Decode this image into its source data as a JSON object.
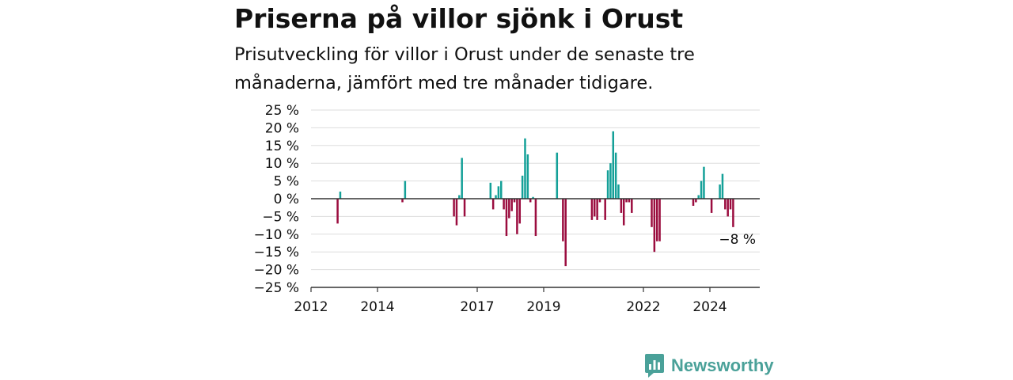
{
  "title": "Priserna på villor sjönk i Orust",
  "subtitle": "Prisutveckling för villor i Orust under de senaste tre månaderna, jämfört med tre månader tidigare.",
  "brand": {
    "name": "Newsworthy",
    "icon": "newsworthy-logo-icon",
    "color": "#4aa199"
  },
  "chart_data": {
    "type": "bar",
    "title": "Priserna på villor sjönk i Orust",
    "xlabel": "",
    "ylabel": "",
    "ylim": [
      -25,
      25
    ],
    "y_ticks": [
      25,
      20,
      15,
      10,
      5,
      0,
      -5,
      -10,
      -15,
      -20,
      -25
    ],
    "y_tick_suffix": " %",
    "x_ticks": [
      2012,
      2014,
      2017,
      2019,
      2022,
      2024
    ],
    "xlim": [
      2012.0,
      2025.5
    ],
    "grid": "horizontal",
    "colors": {
      "positive": "#14a098",
      "negative": "#9b0d3f",
      "zero_line": "#333333"
    },
    "annotation": {
      "text": "−8 %",
      "x": 2025.0,
      "y": -8
    },
    "points": [
      {
        "x": 2012.8,
        "y": -7
      },
      {
        "x": 2012.88,
        "y": 2
      },
      {
        "x": 2014.75,
        "y": -1
      },
      {
        "x": 2014.83,
        "y": 5
      },
      {
        "x": 2016.3,
        "y": -5
      },
      {
        "x": 2016.38,
        "y": -7.5
      },
      {
        "x": 2016.46,
        "y": 1
      },
      {
        "x": 2016.54,
        "y": 11.5
      },
      {
        "x": 2016.62,
        "y": -5
      },
      {
        "x": 2017.4,
        "y": 4.5
      },
      {
        "x": 2017.48,
        "y": -3
      },
      {
        "x": 2017.56,
        "y": 1
      },
      {
        "x": 2017.64,
        "y": 3.5
      },
      {
        "x": 2017.72,
        "y": 5
      },
      {
        "x": 2017.8,
        "y": -3
      },
      {
        "x": 2017.88,
        "y": -10.5
      },
      {
        "x": 2017.96,
        "y": -5.5
      },
      {
        "x": 2018.04,
        "y": -3.5
      },
      {
        "x": 2018.12,
        "y": -1
      },
      {
        "x": 2018.2,
        "y": -10
      },
      {
        "x": 2018.28,
        "y": -7
      },
      {
        "x": 2018.36,
        "y": 6.5
      },
      {
        "x": 2018.44,
        "y": 17
      },
      {
        "x": 2018.52,
        "y": 12.5
      },
      {
        "x": 2018.6,
        "y": -1
      },
      {
        "x": 2018.68,
        "y": 0.5
      },
      {
        "x": 2018.76,
        "y": -10.5
      },
      {
        "x": 2019.4,
        "y": 13
      },
      {
        "x": 2019.58,
        "y": -12
      },
      {
        "x": 2019.66,
        "y": -19
      },
      {
        "x": 2020.45,
        "y": -6
      },
      {
        "x": 2020.53,
        "y": -5
      },
      {
        "x": 2020.61,
        "y": -6
      },
      {
        "x": 2020.69,
        "y": -1
      },
      {
        "x": 2020.85,
        "y": -6
      },
      {
        "x": 2020.93,
        "y": 8
      },
      {
        "x": 2021.01,
        "y": 10
      },
      {
        "x": 2021.09,
        "y": 19
      },
      {
        "x": 2021.17,
        "y": 13
      },
      {
        "x": 2021.25,
        "y": 4
      },
      {
        "x": 2021.33,
        "y": -4
      },
      {
        "x": 2021.41,
        "y": -7.5
      },
      {
        "x": 2021.49,
        "y": -1
      },
      {
        "x": 2021.57,
        "y": -1
      },
      {
        "x": 2021.65,
        "y": -4
      },
      {
        "x": 2022.25,
        "y": -8
      },
      {
        "x": 2022.33,
        "y": -15
      },
      {
        "x": 2022.41,
        "y": -12
      },
      {
        "x": 2022.49,
        "y": -12
      },
      {
        "x": 2023.5,
        "y": -2
      },
      {
        "x": 2023.58,
        "y": -1
      },
      {
        "x": 2023.66,
        "y": 1
      },
      {
        "x": 2023.74,
        "y": 5
      },
      {
        "x": 2023.82,
        "y": 9
      },
      {
        "x": 2024.05,
        "y": -4
      },
      {
        "x": 2024.3,
        "y": 4
      },
      {
        "x": 2024.38,
        "y": 7
      },
      {
        "x": 2024.46,
        "y": -3
      },
      {
        "x": 2024.54,
        "y": -5
      },
      {
        "x": 2024.62,
        "y": -3
      },
      {
        "x": 2024.7,
        "y": -8
      }
    ]
  }
}
